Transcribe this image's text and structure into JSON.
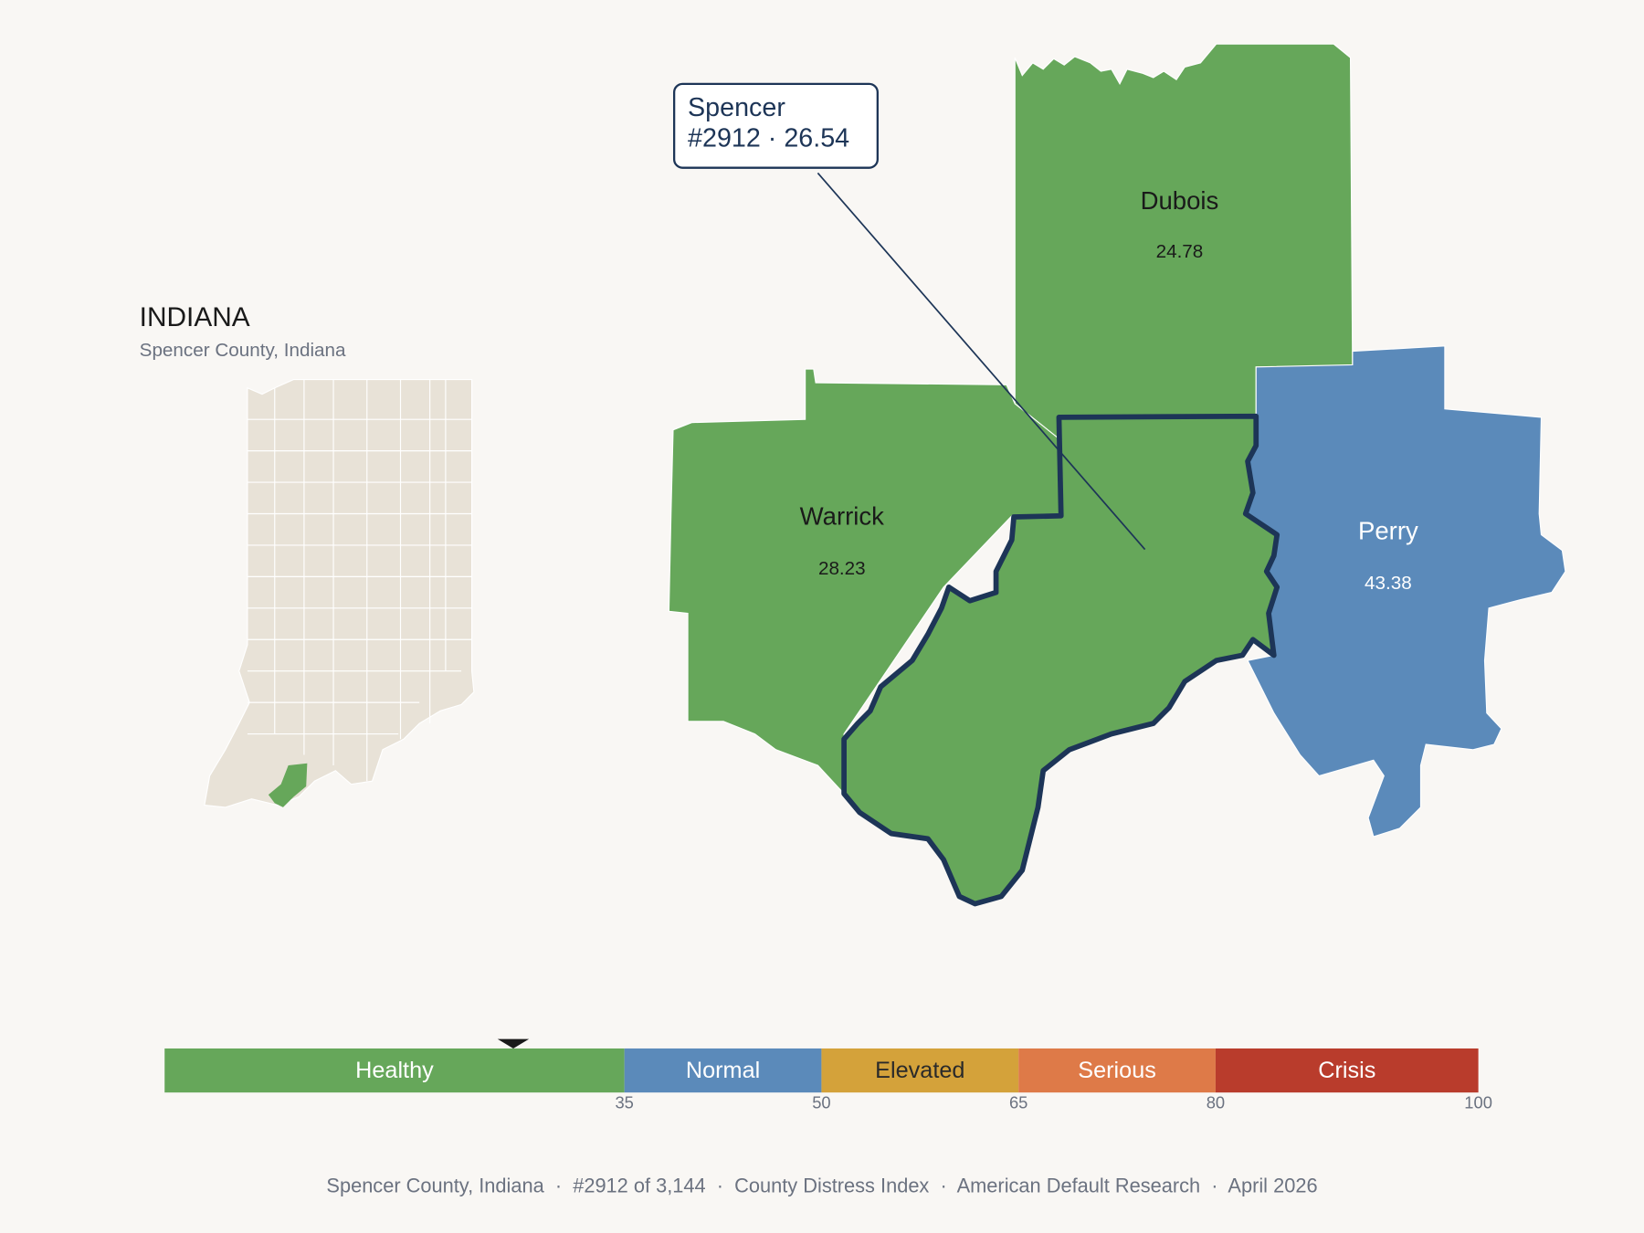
{
  "header": {
    "title": "INDIANA",
    "subtitle": "Spencer County, Indiana"
  },
  "selected": {
    "name": "Spencer",
    "label": "#2912 · 26.54",
    "score": 26.54,
    "color": "#66a75a"
  },
  "counties": [
    {
      "name": "Dubois",
      "value": 24.78,
      "color": "#66a75a"
    },
    {
      "name": "Warrick",
      "value": 28.23,
      "color": "#66a75a"
    },
    {
      "name": "Perry",
      "value": 43.38,
      "color": "#5b8aba"
    }
  ],
  "scale": {
    "range": [
      0,
      100
    ],
    "ticks": [
      35,
      50,
      65,
      80,
      100
    ],
    "bands": [
      {
        "label": "Healthy",
        "color": "#66a75a"
      },
      {
        "label": "Normal",
        "color": "#5b8aba"
      },
      {
        "label": "Elevated",
        "color": "#d4a23a"
      },
      {
        "label": "Serious",
        "color": "#de7a48"
      },
      {
        "label": "Crisis",
        "color": "#b93c2c"
      }
    ]
  },
  "footer": "Spencer County, Indiana  ·  #2912 of 3,144  ·  County Distress Index  ·  American Default Research  ·  April 2026"
}
